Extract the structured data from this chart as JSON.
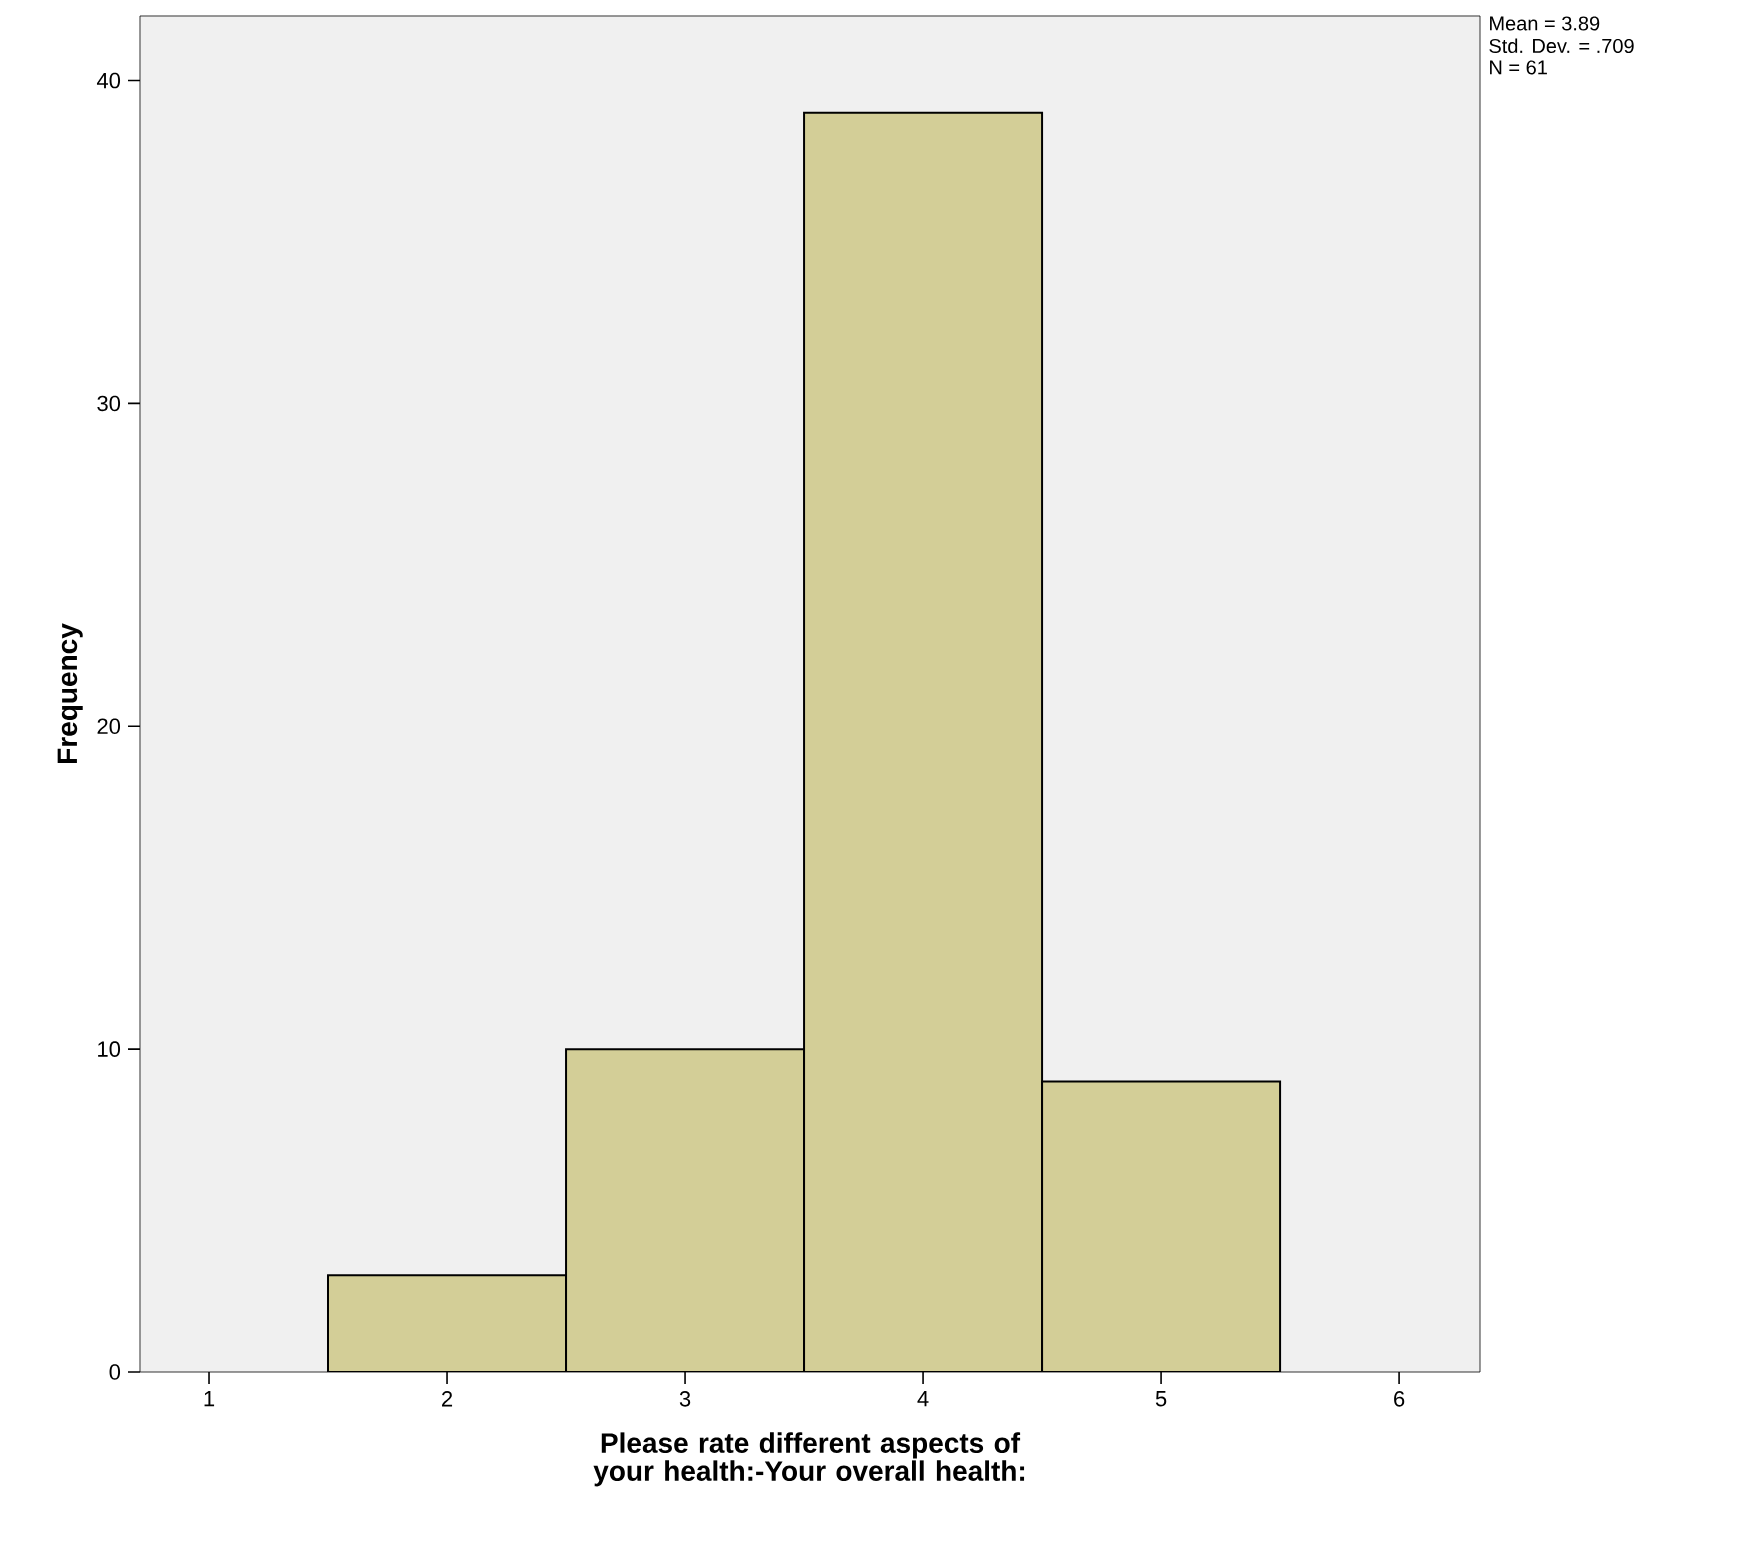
{
  "chart_data": {
    "type": "histogram",
    "bins": [
      1.5,
      2.5,
      3.5,
      4.5,
      5.5
    ],
    "values": [
      3,
      10,
      39,
      9
    ],
    "color": "#d3ce97",
    "xlim": [
      0.71,
      6.34
    ],
    "ylim": [
      0,
      42
    ],
    "xticks": [
      1,
      2,
      3,
      4,
      5,
      6
    ],
    "yticks": [
      0,
      10,
      20,
      30,
      40
    ],
    "xlabel": "Please rate different aspects of your health:-Your overall health:",
    "ylabel": "Frequency",
    "annotations": [
      "Mean = 3.89",
      "Std. Dev. = .709",
      "N = 61"
    ]
  }
}
